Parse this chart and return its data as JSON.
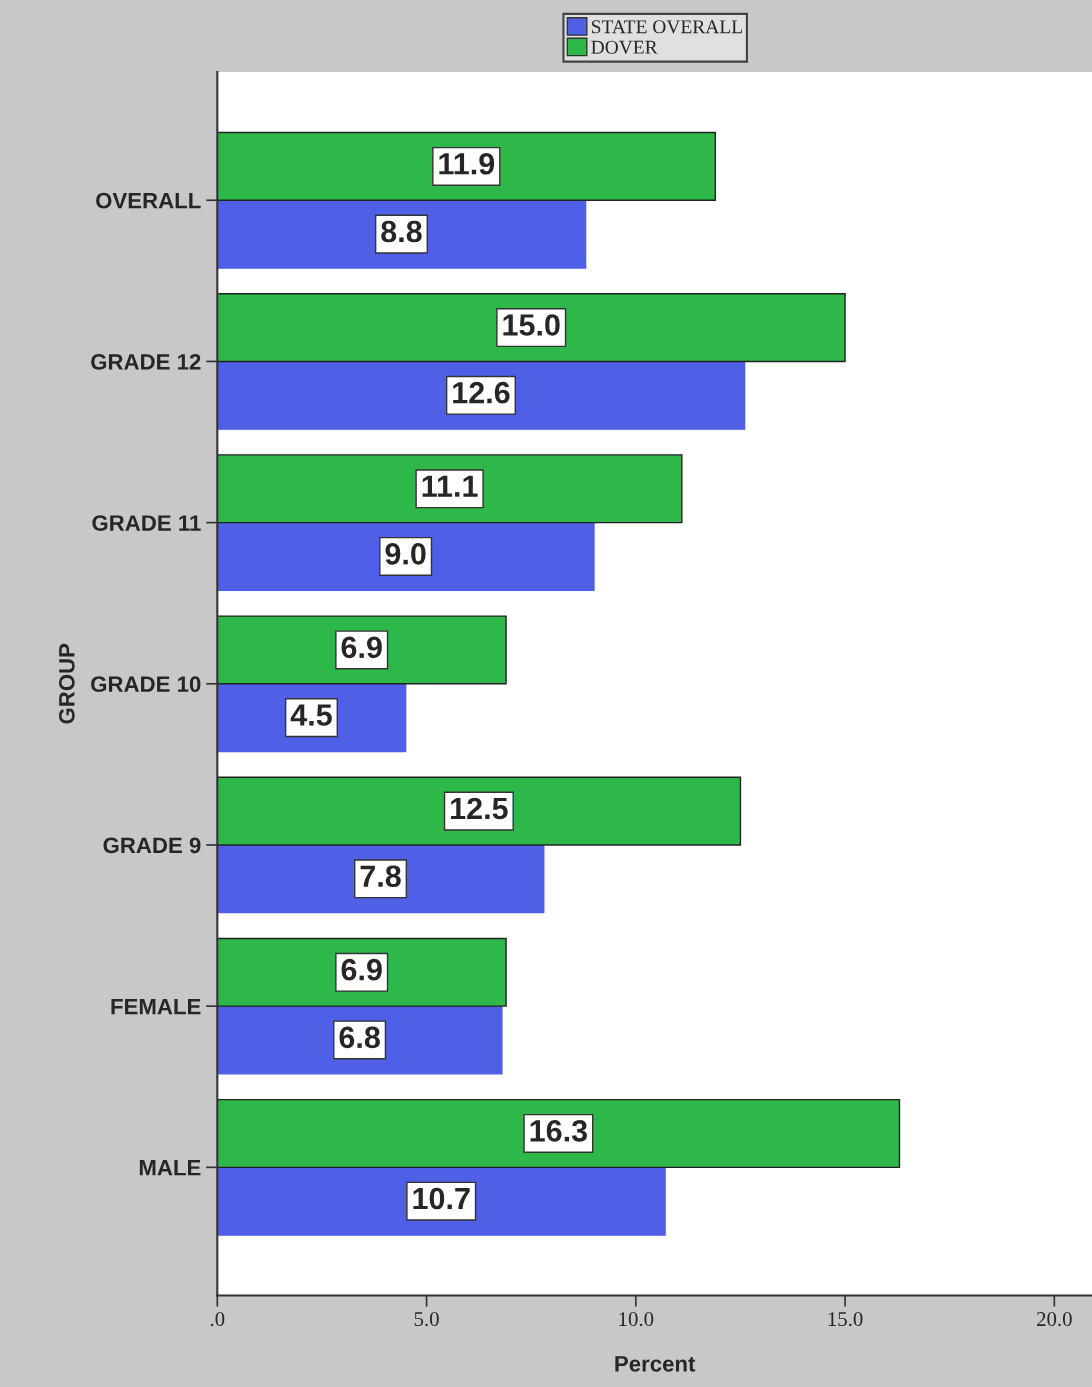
{
  "chart_data": {
    "type": "bar",
    "orientation": "horizontal",
    "xlabel": "Percent",
    "ylabel": "GROUP",
    "categories": [
      "OVERALL",
      "GRADE 12",
      "GRADE 11",
      "GRADE 10",
      "GRADE 9",
      "FEMALE",
      "MALE"
    ],
    "series": [
      {
        "name": "STATE OVERALL",
        "color": "#4f5fe6",
        "values": [
          8.8,
          12.6,
          9.0,
          4.5,
          7.8,
          6.8,
          10.7
        ],
        "value_labels": [
          "8.8",
          "12.6",
          "9.0",
          "4.5",
          "7.8",
          "6.8",
          "10.7"
        ]
      },
      {
        "name": "DOVER",
        "color": "#2eb84a",
        "values": [
          11.9,
          15.0,
          11.1,
          6.9,
          12.5,
          6.9,
          16.3
        ],
        "value_labels": [
          "11.9",
          "15.0",
          "11.1",
          "6.9",
          "12.5",
          "6.9",
          "16.3"
        ]
      }
    ],
    "xlim": [
      0,
      20.9
    ],
    "xticks": [
      {
        "value": 0,
        "label": ".0"
      },
      {
        "value": 5,
        "label": "5.0"
      },
      {
        "value": 10,
        "label": "10.0"
      },
      {
        "value": 15,
        "label": "15.0"
      },
      {
        "value": 20,
        "label": "20.0"
      }
    ],
    "legend": "top",
    "grid": false
  }
}
